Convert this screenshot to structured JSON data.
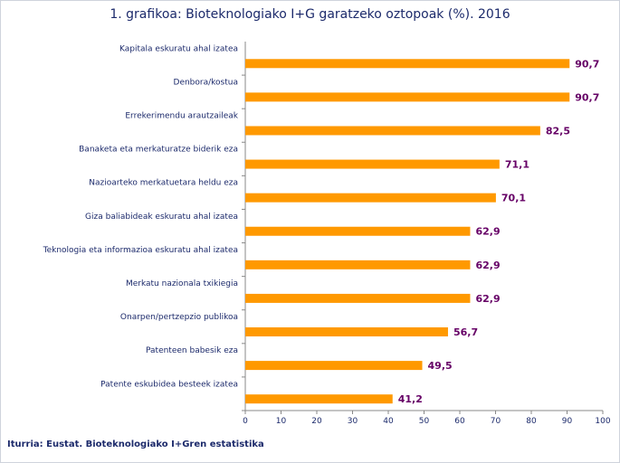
{
  "chart_data": {
    "type": "bar",
    "orientation": "horizontal",
    "title": "1. grafikoa: Bioteknologiako I+G garatzeko oztopoak (%). 2016",
    "categories": [
      "Kapitala eskuratu ahal izatea",
      "Denbora/kostua",
      "Errekerimendu arautzaileak",
      "Banaketa eta merkaturatze biderik eza",
      "Nazioarteko merkatuetara heldu eza",
      "Giza baliabideak eskuratu ahal izatea",
      "Teknologia eta informazioa eskuratu ahal izatea",
      "Merkatu nazionala txikiegia",
      "Onarpen/pertzepzio publikoa",
      "Patenteen babesik eza",
      "Patente eskubidea besteek izatea"
    ],
    "values": [
      90.7,
      90.7,
      82.5,
      71.1,
      70.1,
      62.9,
      62.9,
      62.9,
      56.7,
      49.5,
      41.2
    ],
    "value_labels": [
      "90,7",
      "90,7",
      "82,5",
      "71,1",
      "70,1",
      "62,9",
      "62,9",
      "62,9",
      "56,7",
      "49,5",
      "41,2"
    ],
    "xlim": [
      0,
      100
    ],
    "xticks": [
      0,
      10,
      20,
      30,
      40,
      50,
      60,
      70,
      80,
      90,
      100
    ],
    "xlabel": "",
    "ylabel": "",
    "grid": false,
    "legend": "none",
    "colors": {
      "bar": "#ff9900",
      "value_label": "#660066",
      "category_label": "#1c2a6b",
      "axis": "#888888"
    }
  },
  "source": "Iturria: Eustat. Bioteknologiako I+Gren estatistika"
}
